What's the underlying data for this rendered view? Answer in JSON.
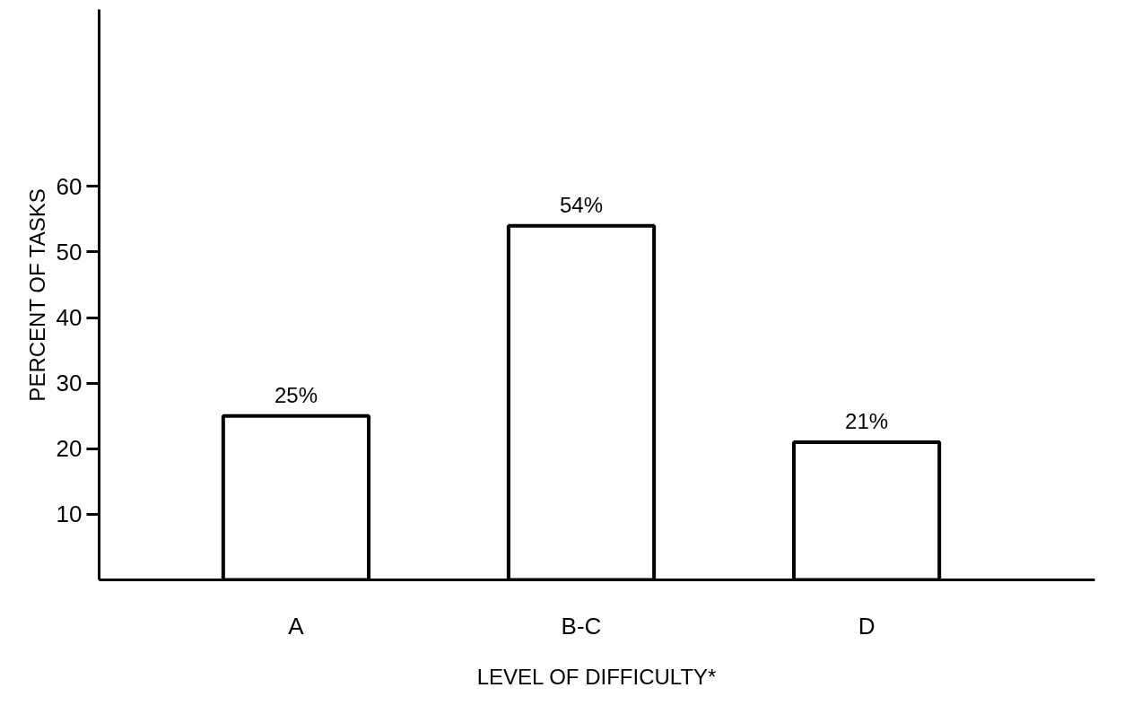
{
  "chart_data": {
    "type": "bar",
    "xlabel": "LEVEL OF DIFFICULTY*",
    "ylabel": "PERCENT OF TASKS",
    "categories": [
      "A",
      "B-C",
      "D"
    ],
    "values": [
      25,
      54,
      21
    ],
    "value_labels": [
      "25%",
      "54%",
      "21%"
    ],
    "color": "#ffffff",
    "ylim": [
      0,
      87
    ],
    "yticks": [
      10,
      20,
      30,
      40,
      50,
      60
    ],
    "grid": false
  }
}
